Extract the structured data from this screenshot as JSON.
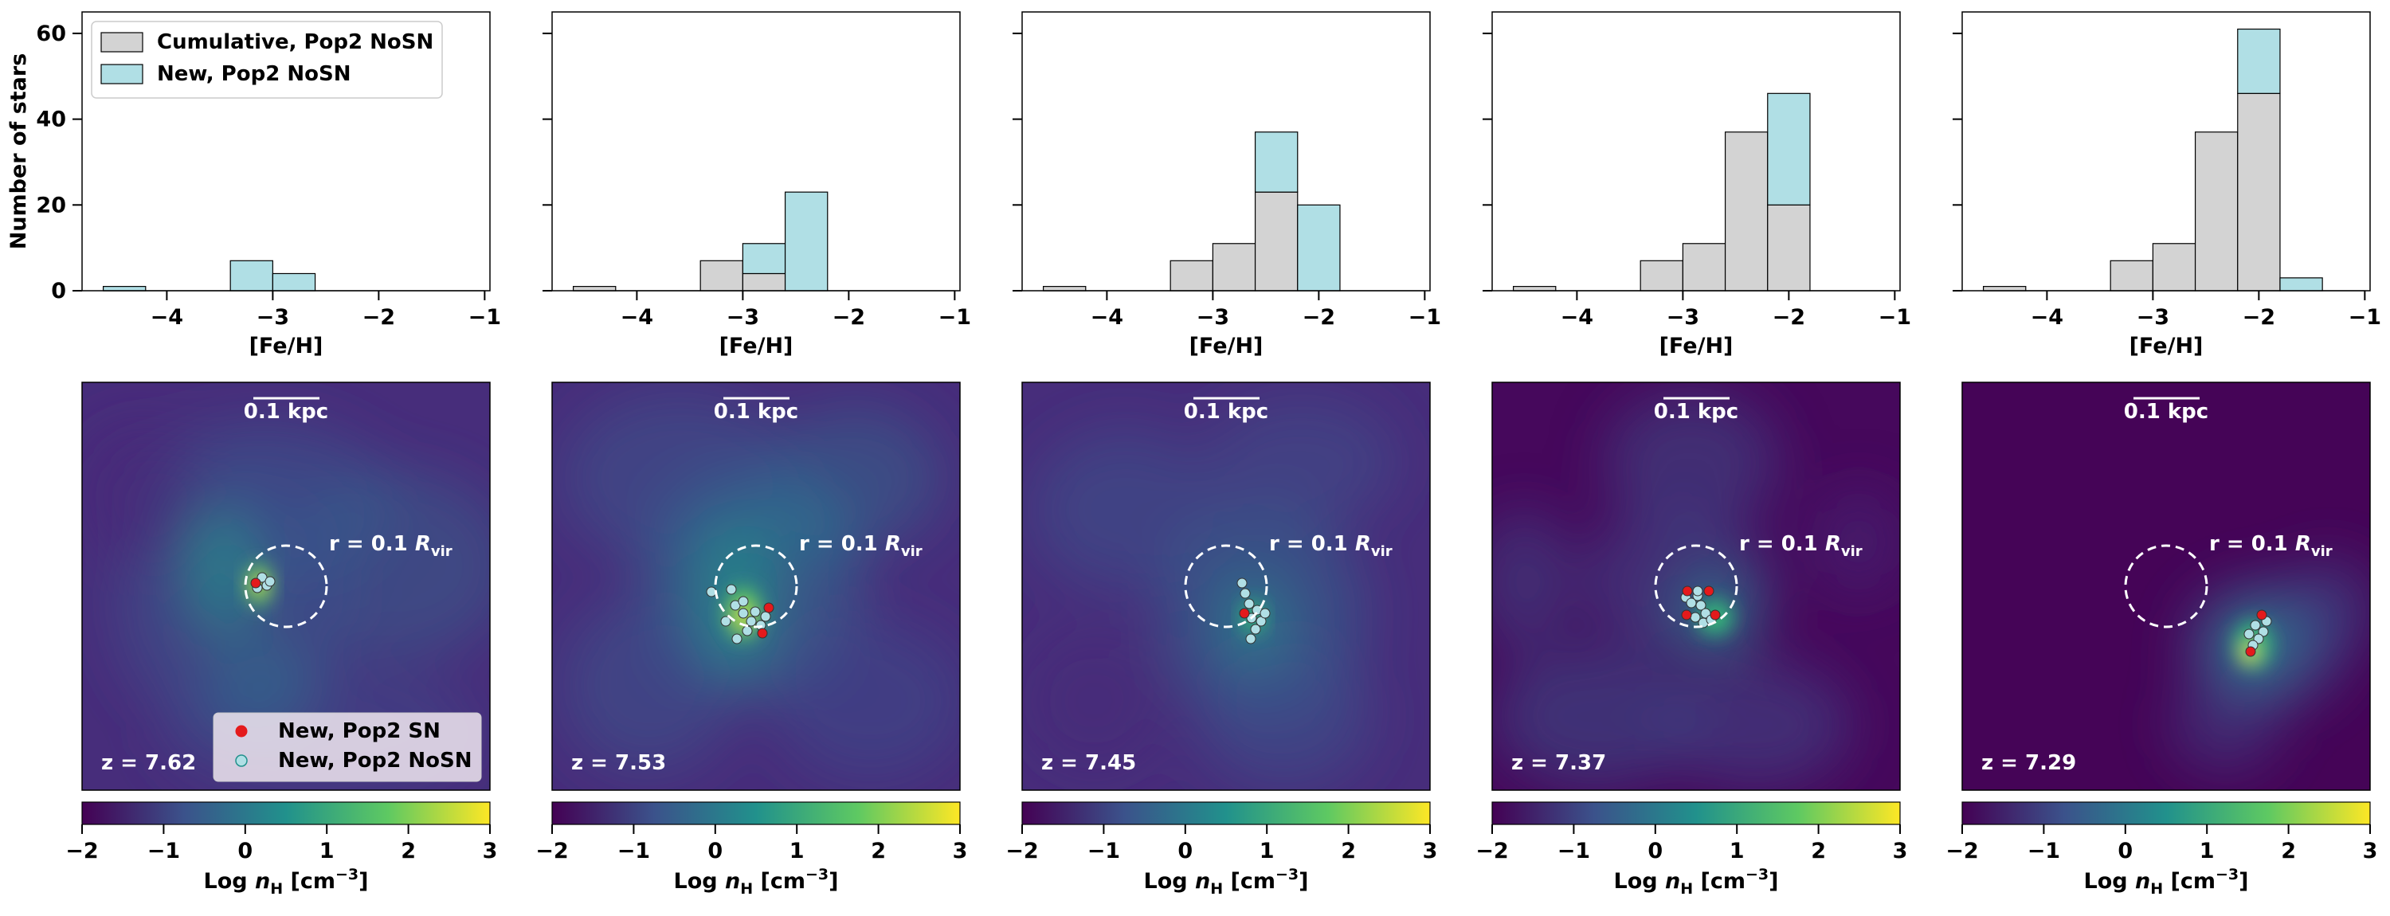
{
  "figure": {
    "histogram_ylabel": "Number of stars",
    "histogram_xlabel": "[Fe/H]",
    "colorbar_label_prefix": "Log ",
    "colorbar_label_var": "n",
    "colorbar_label_sub": "H",
    "colorbar_label_unit": " [cm",
    "colorbar_label_exp": "−3",
    "colorbar_label_close": "]",
    "scale_bar_label": "0.1 kpc",
    "circle_label_prefix": "r = 0.1 ",
    "circle_label_var": "R",
    "circle_label_sub": "vir",
    "hist_legend": [
      {
        "label": "Cumulative, Pop2 NoSN",
        "color": "#d3d3d3"
      },
      {
        "label": "New, Pop2 NoSN",
        "color": "#b0dfe5"
      }
    ],
    "map_legend": [
      {
        "label": "New, Pop2 SN",
        "color": "#e41a1c"
      },
      {
        "label": "New, Pop2 NoSN",
        "color": "#b0dfe5"
      }
    ]
  },
  "chart_data": [
    {
      "type": "bar",
      "panel": 1,
      "stacked": true,
      "xlim": [
        -4.8,
        -0.95
      ],
      "ylim": [
        0,
        65
      ],
      "xticks": [
        -4,
        -3,
        -2,
        -1
      ],
      "yticks": [
        0,
        20,
        40,
        60
      ],
      "bin_edges": [
        -4.6,
        -4.2,
        -3.8,
        -3.4,
        -3.0,
        -2.6,
        -2.2,
        -1.8,
        -1.4,
        -1.0
      ],
      "cumulative": [
        0,
        0,
        0,
        0,
        0,
        0,
        0,
        0,
        0
      ],
      "new": [
        1,
        0,
        0,
        7,
        4,
        0,
        0,
        0,
        0
      ]
    },
    {
      "type": "bar",
      "panel": 2,
      "stacked": true,
      "xlim": [
        -4.8,
        -0.95
      ],
      "ylim": [
        0,
        65
      ],
      "xticks": [
        -4,
        -3,
        -2,
        -1
      ],
      "yticks": [
        0,
        20,
        40,
        60
      ],
      "bin_edges": [
        -4.6,
        -4.2,
        -3.8,
        -3.4,
        -3.0,
        -2.6,
        -2.2,
        -1.8,
        -1.4,
        -1.0
      ],
      "cumulative": [
        1,
        0,
        0,
        7,
        4,
        0,
        0,
        0,
        0
      ],
      "new": [
        0,
        0,
        0,
        0,
        7,
        23,
        0,
        0,
        0
      ]
    },
    {
      "type": "bar",
      "panel": 3,
      "stacked": true,
      "xlim": [
        -4.8,
        -0.95
      ],
      "ylim": [
        0,
        65
      ],
      "xticks": [
        -4,
        -3,
        -2,
        -1
      ],
      "yticks": [
        0,
        20,
        40,
        60
      ],
      "bin_edges": [
        -4.6,
        -4.2,
        -3.8,
        -3.4,
        -3.0,
        -2.6,
        -2.2,
        -1.8,
        -1.4,
        -1.0
      ],
      "cumulative": [
        1,
        0,
        0,
        7,
        11,
        23,
        0,
        0,
        0
      ],
      "new": [
        0,
        0,
        0,
        0,
        0,
        14,
        20,
        0,
        0
      ]
    },
    {
      "type": "bar",
      "panel": 4,
      "stacked": true,
      "xlim": [
        -4.8,
        -0.95
      ],
      "ylim": [
        0,
        65
      ],
      "xticks": [
        -4,
        -3,
        -2,
        -1
      ],
      "yticks": [
        0,
        20,
        40,
        60
      ],
      "bin_edges": [
        -4.6,
        -4.2,
        -3.8,
        -3.4,
        -3.0,
        -2.6,
        -2.2,
        -1.8,
        -1.4,
        -1.0
      ],
      "cumulative": [
        1,
        0,
        0,
        7,
        11,
        37,
        20,
        0,
        0
      ],
      "new": [
        0,
        0,
        0,
        0,
        0,
        0,
        26,
        0,
        0
      ]
    },
    {
      "type": "bar",
      "panel": 5,
      "stacked": true,
      "xlim": [
        -4.8,
        -0.95
      ],
      "ylim": [
        0,
        65
      ],
      "xticks": [
        -4,
        -3,
        -2,
        -1
      ],
      "yticks": [
        0,
        20,
        40,
        60
      ],
      "bin_edges": [
        -4.6,
        -4.2,
        -3.8,
        -3.4,
        -3.0,
        -2.6,
        -2.2,
        -1.8,
        -1.4,
        -1.0
      ],
      "cumulative": [
        1,
        0,
        0,
        7,
        11,
        37,
        46,
        0,
        0
      ],
      "new": [
        0,
        0,
        0,
        0,
        0,
        0,
        15,
        3,
        0
      ]
    },
    {
      "type": "heatmap",
      "panel": 6,
      "redshift": "z = 7.62",
      "colorbar_range": [
        -2,
        3
      ],
      "colorbar_ticks": [
        -2,
        -1,
        0,
        1,
        2,
        3
      ],
      "colormap": [
        "#440154",
        "#3b528b",
        "#21918c",
        "#5ec962",
        "#fde725"
      ]
    },
    {
      "type": "heatmap",
      "panel": 7,
      "redshift": "z = 7.53",
      "colorbar_range": [
        -2,
        3
      ],
      "colorbar_ticks": [
        -2,
        -1,
        0,
        1,
        2,
        3
      ],
      "colormap": [
        "#440154",
        "#3b528b",
        "#21918c",
        "#5ec962",
        "#fde725"
      ]
    },
    {
      "type": "heatmap",
      "panel": 8,
      "redshift": "z = 7.45",
      "colorbar_range": [
        -2,
        3
      ],
      "colorbar_ticks": [
        -2,
        -1,
        0,
        1,
        2,
        3
      ],
      "colormap": [
        "#440154",
        "#3b528b",
        "#21918c",
        "#5ec962",
        "#fde725"
      ]
    },
    {
      "type": "heatmap",
      "panel": 9,
      "redshift": "z = 7.37",
      "colorbar_range": [
        -2,
        3
      ],
      "colorbar_ticks": [
        -2,
        -1,
        0,
        1,
        2,
        3
      ],
      "colormap": [
        "#440154",
        "#3b528b",
        "#21918c",
        "#5ec962",
        "#fde725"
      ]
    },
    {
      "type": "heatmap",
      "panel": 10,
      "redshift": "z = 7.29",
      "colorbar_range": [
        -2,
        3
      ],
      "colorbar_ticks": [
        -2,
        -1,
        0,
        1,
        2,
        3
      ],
      "colormap": [
        "#440154",
        "#3b528b",
        "#21918c",
        "#5ec962",
        "#fde725"
      ]
    }
  ]
}
